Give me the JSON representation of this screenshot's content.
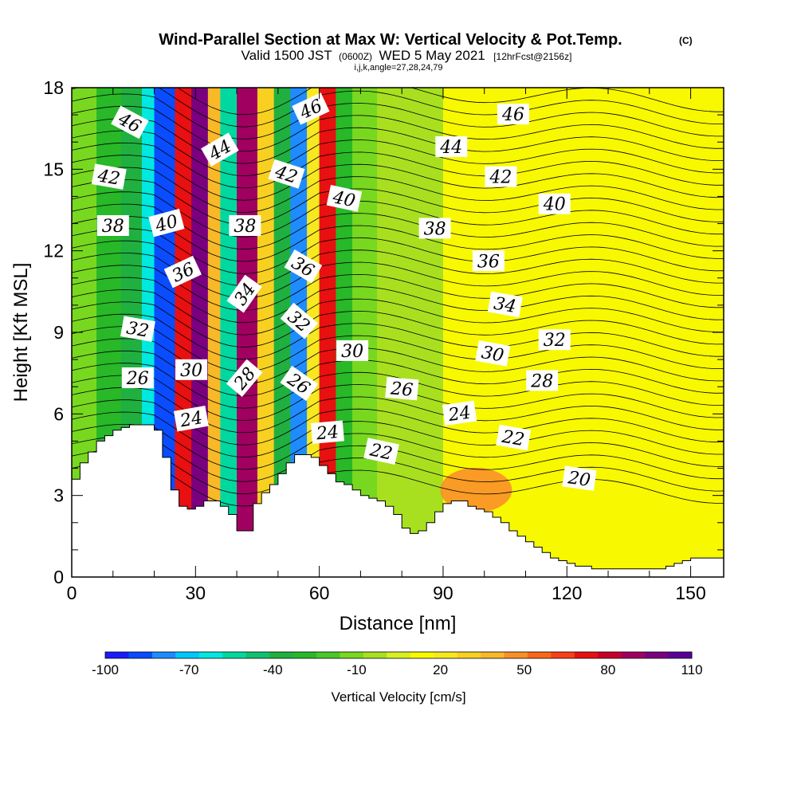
{
  "chart_data": {
    "type": "heatmap",
    "title": "Wind-Parallel Section at Max W: Vertical Velocity & Pot.Temp.",
    "title_suffix": "(C)",
    "subtitle_parts": [
      "Valid 1500 JST",
      "(0600Z)",
      "WED 5 May 2021",
      "[12hrFcst@2156z]"
    ],
    "subtitle2": "i,j,k,angle=27,28,24,79",
    "xlabel": "Distance [nm]",
    "ylabel": "Height [Kft MSL]",
    "xlim": [
      0,
      158
    ],
    "ylim": [
      0,
      18
    ],
    "x_ticks": [
      "0",
      "30",
      "60",
      "90",
      "120",
      "150"
    ],
    "x_tick_values": [
      0,
      30,
      60,
      90,
      120,
      150
    ],
    "y_ticks": [
      "0",
      "3",
      "6",
      "9",
      "12",
      "15",
      "18"
    ],
    "y_tick_values": [
      0,
      3,
      6,
      9,
      12,
      15,
      18
    ],
    "colorbar": {
      "label": "Vertical Velocity [cm/s]",
      "ticks": [
        "-100",
        "-70",
        "-40",
        "-10",
        "20",
        "50",
        "80",
        "110"
      ],
      "colors": [
        "#1a1aff",
        "#0a4cff",
        "#1e8cff",
        "#00c8ff",
        "#00e8e0",
        "#00d8a0",
        "#10c070",
        "#20b040",
        "#28b828",
        "#48c828",
        "#78d820",
        "#a8e020",
        "#d8f020",
        "#f8f800",
        "#f8e820",
        "#f8d020",
        "#f8b828",
        "#f89028",
        "#f86818",
        "#f84018",
        "#e81010",
        "#c80028",
        "#a00060",
        "#7a0080",
        "#5a0098"
      ]
    },
    "vertical_velocity_bands": [
      {
        "x_range": [
          0,
          6
        ],
        "value": -15
      },
      {
        "x_range": [
          6,
          12
        ],
        "value": -25
      },
      {
        "x_range": [
          12,
          17
        ],
        "value": -40
      },
      {
        "x_range": [
          17,
          20
        ],
        "value": -60
      },
      {
        "x_range": [
          20,
          25
        ],
        "value": -90
      },
      {
        "x_range": [
          25,
          29
        ],
        "value": 70
      },
      {
        "x_range": [
          29,
          33
        ],
        "value": 100
      },
      {
        "x_range": [
          33,
          36
        ],
        "value": 40
      },
      {
        "x_range": [
          36,
          40
        ],
        "value": -50
      },
      {
        "x_range": [
          40,
          45
        ],
        "value": 90
      },
      {
        "x_range": [
          45,
          49
        ],
        "value": 30
      },
      {
        "x_range": [
          49,
          53
        ],
        "value": -40
      },
      {
        "x_range": [
          53,
          57
        ],
        "value": -80
      },
      {
        "x_range": [
          57,
          60
        ],
        "value": 20
      },
      {
        "x_range": [
          60,
          64
        ],
        "value": 70
      },
      {
        "x_range": [
          64,
          68
        ],
        "value": -30
      },
      {
        "x_range": [
          68,
          74
        ],
        "value": -10
      },
      {
        "x_range": [
          74,
          90
        ],
        "value": 0
      },
      {
        "x_range": [
          90,
          110
        ],
        "value": 10
      },
      {
        "x_range": [
          110,
          130
        ],
        "value": 15
      },
      {
        "x_range": [
          130,
          158
        ],
        "value": 10
      }
    ],
    "updraft_core": {
      "center": [
        98,
        3.2
      ],
      "value": 45
    },
    "terrain_x": [
      0,
      2,
      4,
      6,
      8,
      10,
      12,
      14,
      16,
      18,
      20,
      22,
      24,
      26,
      28,
      30,
      32,
      34,
      36,
      38,
      40,
      42,
      44,
      46,
      48,
      50,
      52,
      54,
      56,
      58,
      60,
      62,
      64,
      66,
      68,
      70,
      72,
      74,
      76,
      78,
      80,
      82,
      84,
      86,
      88,
      90,
      92,
      94,
      96,
      98,
      100,
      102,
      104,
      106,
      108,
      110,
      112,
      114,
      116,
      118,
      120,
      122,
      124,
      126,
      128,
      130,
      132,
      134,
      136,
      138,
      140,
      142,
      144,
      146,
      148,
      150,
      152,
      154,
      156,
      158
    ],
    "terrain_y": [
      3.6,
      4.2,
      4.6,
      5.0,
      5.2,
      5.4,
      5.5,
      5.6,
      5.6,
      5.6,
      5.4,
      4.4,
      3.2,
      2.6,
      2.5,
      2.6,
      2.8,
      2.8,
      2.6,
      2.3,
      1.7,
      1.7,
      2.7,
      3.1,
      3.4,
      3.8,
      4.2,
      4.5,
      4.5,
      4.4,
      4.1,
      3.8,
      3.5,
      3.4,
      3.2,
      3.0,
      2.9,
      2.8,
      2.6,
      2.3,
      1.8,
      1.6,
      1.7,
      2.0,
      2.4,
      2.7,
      2.8,
      2.8,
      2.6,
      2.5,
      2.4,
      2.2,
      2.0,
      1.7,
      1.5,
      1.3,
      1.1,
      0.9,
      0.7,
      0.6,
      0.5,
      0.4,
      0.4,
      0.3,
      0.3,
      0.3,
      0.3,
      0.3,
      0.3,
      0.3,
      0.3,
      0.3,
      0.4,
      0.5,
      0.6,
      0.7,
      0.7,
      0.7,
      0.7,
      0.7
    ],
    "theta_contour_labels": [
      {
        "text": "46",
        "x": 14,
        "y": 16.7,
        "angle": 28
      },
      {
        "text": "44",
        "x": 36,
        "y": 15.7,
        "angle": -30
      },
      {
        "text": "46",
        "x": 58,
        "y": 17.2,
        "angle": -25
      },
      {
        "text": "46",
        "x": 107,
        "y": 17.0,
        "angle": 0
      },
      {
        "text": "44",
        "x": 92,
        "y": 15.8,
        "angle": 0
      },
      {
        "text": "42",
        "x": 9,
        "y": 14.7,
        "angle": 10
      },
      {
        "text": "42",
        "x": 52,
        "y": 14.8,
        "angle": 18
      },
      {
        "text": "42",
        "x": 104,
        "y": 14.7,
        "angle": 0
      },
      {
        "text": "40",
        "x": 23,
        "y": 13.0,
        "angle": -15
      },
      {
        "text": "40",
        "x": 66,
        "y": 13.9,
        "angle": 12
      },
      {
        "text": "40",
        "x": 117,
        "y": 13.7,
        "angle": 0
      },
      {
        "text": "38",
        "x": 10,
        "y": 12.9,
        "angle": 0
      },
      {
        "text": "38",
        "x": 42,
        "y": 12.9,
        "angle": 0
      },
      {
        "text": "38",
        "x": 88,
        "y": 12.8,
        "angle": 0
      },
      {
        "text": "36",
        "x": 27,
        "y": 11.2,
        "angle": -25
      },
      {
        "text": "36",
        "x": 56,
        "y": 11.4,
        "angle": 30
      },
      {
        "text": "36",
        "x": 101,
        "y": 11.6,
        "angle": 0
      },
      {
        "text": "34",
        "x": 42,
        "y": 10.4,
        "angle": -55
      },
      {
        "text": "34",
        "x": 105,
        "y": 10.0,
        "angle": 10
      },
      {
        "text": "32",
        "x": 16,
        "y": 9.1,
        "angle": 10
      },
      {
        "text": "32",
        "x": 55,
        "y": 9.4,
        "angle": 40
      },
      {
        "text": "32",
        "x": 117,
        "y": 8.7,
        "angle": 0
      },
      {
        "text": "30",
        "x": 29,
        "y": 7.6,
        "angle": 0
      },
      {
        "text": "30",
        "x": 68,
        "y": 8.3,
        "angle": 0
      },
      {
        "text": "30",
        "x": 102,
        "y": 8.2,
        "angle": 10
      },
      {
        "text": "28",
        "x": 42,
        "y": 7.3,
        "angle": -50
      },
      {
        "text": "28",
        "x": 114,
        "y": 7.2,
        "angle": 0
      },
      {
        "text": "26",
        "x": 16,
        "y": 7.3,
        "angle": 0
      },
      {
        "text": "26",
        "x": 55,
        "y": 7.1,
        "angle": 35
      },
      {
        "text": "26",
        "x": 80,
        "y": 6.9,
        "angle": 5
      },
      {
        "text": "24",
        "x": 29,
        "y": 5.8,
        "angle": -10
      },
      {
        "text": "24",
        "x": 62,
        "y": 5.3,
        "angle": -5
      },
      {
        "text": "24",
        "x": 94,
        "y": 6.0,
        "angle": -8
      },
      {
        "text": "22",
        "x": 75,
        "y": 4.6,
        "angle": 12
      },
      {
        "text": "22",
        "x": 107,
        "y": 5.1,
        "angle": 10
      },
      {
        "text": "20",
        "x": 123,
        "y": 3.6,
        "angle": 8
      }
    ]
  }
}
